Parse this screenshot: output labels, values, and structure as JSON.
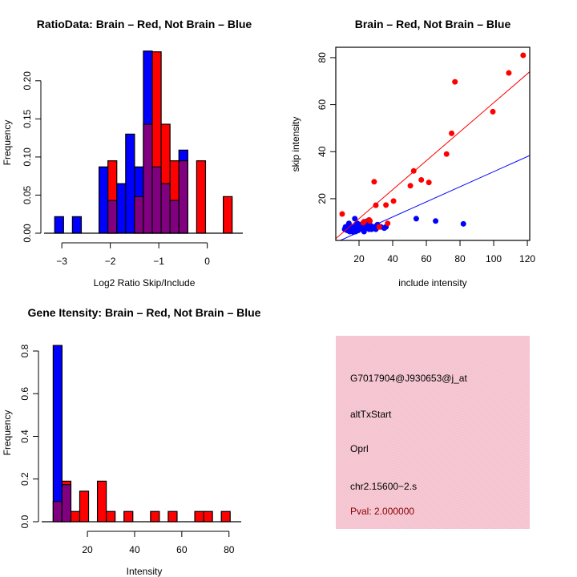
{
  "chart_data": [
    {
      "type": "bar",
      "subtype": "overlaid-histogram",
      "title": "RatioData: Brain – Red, Not Brain – Blue",
      "xlabel": "Log2 Ratio Skip/Include",
      "ylabel": "Frequency",
      "xlim": [
        -3.25,
        0.7
      ],
      "ylim": [
        0,
        0.245
      ],
      "xticks": [
        -3,
        -2,
        -1,
        0
      ],
      "xtick_labels": [
        "−3",
        "−2",
        "−1",
        "0"
      ],
      "yticks": [
        0,
        0.05,
        0.1,
        0.15,
        0.2
      ],
      "ytick_labels": [
        "0.00",
        "0.05",
        "0.10",
        "0.15",
        "0.20"
      ],
      "bin_start": -3.147,
      "bin_width": 0.183,
      "overlap_color": "#800080",
      "series": [
        {
          "name": "Not Brain",
          "color": "#0000ff",
          "values": [
            0.0217,
            0,
            0.0217,
            0,
            0,
            0.087,
            0.043,
            0.065,
            0.13,
            0.087,
            0.239,
            0.087,
            0.065,
            0.043,
            0.109,
            0,
            0,
            0,
            0,
            0
          ]
        },
        {
          "name": "Brain",
          "color": "#ff0000",
          "values": [
            0,
            0,
            0,
            0,
            0,
            0,
            0.095,
            0,
            0,
            0.048,
            0.143,
            0.238,
            0.143,
            0.095,
            0.095,
            0,
            0.095,
            0,
            0,
            0.048
          ]
        }
      ]
    },
    {
      "type": "scatter",
      "title": "Brain – Red, Not Brain – Blue",
      "xlabel": "include intensity",
      "ylabel": "skip intensity",
      "xlim": [
        6.2,
        121.4
      ],
      "ylim": [
        2.25,
        84.4
      ],
      "xticks": [
        20,
        40,
        60,
        80,
        100,
        120
      ],
      "yticks": [
        20,
        40,
        60,
        80
      ],
      "series": [
        {
          "name": "Brain",
          "color": "#ff0000",
          "fit": {
            "slope": 0.616,
            "intercept": -0.8
          },
          "points": [
            [
              10,
              13.5
            ],
            [
              29,
              27.2
            ],
            [
              30,
              17.2
            ],
            [
              36,
              17.3
            ],
            [
              40.5,
              19
            ],
            [
              23,
              10.2
            ],
            [
              26,
              11
            ],
            [
              26.5,
              10.5
            ],
            [
              32,
              8
            ],
            [
              37,
              9.5
            ],
            [
              50.5,
              25.5
            ],
            [
              52.5,
              31.8
            ],
            [
              57,
              28
            ],
            [
              61.5,
              26.9
            ],
            [
              72,
              39
            ],
            [
              75,
              47.8
            ],
            [
              77,
              69.7
            ],
            [
              99.5,
              57
            ],
            [
              109,
              73.5
            ],
            [
              117.5,
              81
            ],
            [
              22.5,
              9.8
            ]
          ]
        },
        {
          "name": "Not Brain",
          "color": "#0000ff",
          "fit": {
            "slope": 0.321,
            "intercept": -0.6
          },
          "points": [
            [
              11.5,
              7
            ],
            [
              12,
              8
            ],
            [
              12.5,
              7.5
            ],
            [
              13,
              6.5
            ],
            [
              13.5,
              8.5
            ],
            [
              14,
              9.5
            ],
            [
              14.5,
              6
            ],
            [
              15,
              7.5
            ],
            [
              15.5,
              8
            ],
            [
              16,
              6.5
            ],
            [
              16.5,
              5.8
            ],
            [
              17,
              7
            ],
            [
              17.5,
              11.5
            ],
            [
              18,
              8.5
            ],
            [
              18,
              6
            ],
            [
              18.5,
              7.5
            ],
            [
              19,
              9.5
            ],
            [
              19.5,
              6.5
            ],
            [
              20,
              8
            ],
            [
              20.5,
              9
            ],
            [
              21,
              7.5
            ],
            [
              21.5,
              8.5
            ],
            [
              22,
              7
            ],
            [
              22.5,
              9.5
            ],
            [
              23,
              6
            ],
            [
              23,
              8
            ],
            [
              23.5,
              10
            ],
            [
              24,
              7.5
            ],
            [
              24.5,
              9
            ],
            [
              25,
              10.5
            ],
            [
              25.5,
              8
            ],
            [
              26,
              7
            ],
            [
              26.5,
              7.5
            ],
            [
              27,
              8.5
            ],
            [
              27.5,
              7
            ],
            [
              28,
              7.5
            ],
            [
              29,
              8
            ],
            [
              30,
              7
            ],
            [
              30.5,
              8.5
            ],
            [
              31,
              9
            ],
            [
              33,
              8
            ],
            [
              35,
              7.5
            ],
            [
              36,
              8
            ],
            [
              54,
              11.5
            ],
            [
              65.5,
              10.5
            ],
            [
              82,
              9.3
            ]
          ]
        }
      ]
    },
    {
      "type": "bar",
      "subtype": "overlaid-histogram",
      "title": "Gene Itensity: Brain – Red, Not Brain – Blue",
      "xlabel": "Intensity",
      "ylabel": "Frequency",
      "xlim": [
        3.0,
        84.5
      ],
      "ylim": [
        0,
        0.83
      ],
      "xticks": [
        20,
        40,
        60,
        80
      ],
      "xtick_labels": [
        "20",
        "40",
        "60",
        "80"
      ],
      "yticks": [
        0,
        0.2,
        0.4,
        0.6,
        0.8
      ],
      "ytick_labels": [
        "0.0",
        "0.2",
        "0.4",
        "0.6",
        "0.8"
      ],
      "bin_start": 5.5,
      "bin_width": 3.75,
      "overlap_color": "#800080",
      "series": [
        {
          "name": "Not Brain",
          "color": "#0000ff",
          "values": [
            0.826,
            0.174,
            0,
            0,
            0,
            0,
            0,
            0,
            0,
            0,
            0,
            0,
            0,
            0,
            0,
            0,
            0,
            0,
            0,
            0
          ]
        },
        {
          "name": "Brain",
          "color": "#ff0000",
          "values": [
            0.095,
            0.19,
            0.048,
            0.143,
            0,
            0.19,
            0.048,
            0,
            0.048,
            0,
            0,
            0.048,
            0,
            0.048,
            0,
            0,
            0.048,
            0.048,
            0,
            0.048
          ]
        }
      ]
    }
  ],
  "info_panel": {
    "background": "#f5c3cf",
    "lines": [
      "G7017904@J930653@j_at",
      "altTxStart",
      "Oprl",
      "chr2.15600−2.s"
    ],
    "pval": "Pval: 2.000000",
    "pval_color": "#8b0000"
  }
}
